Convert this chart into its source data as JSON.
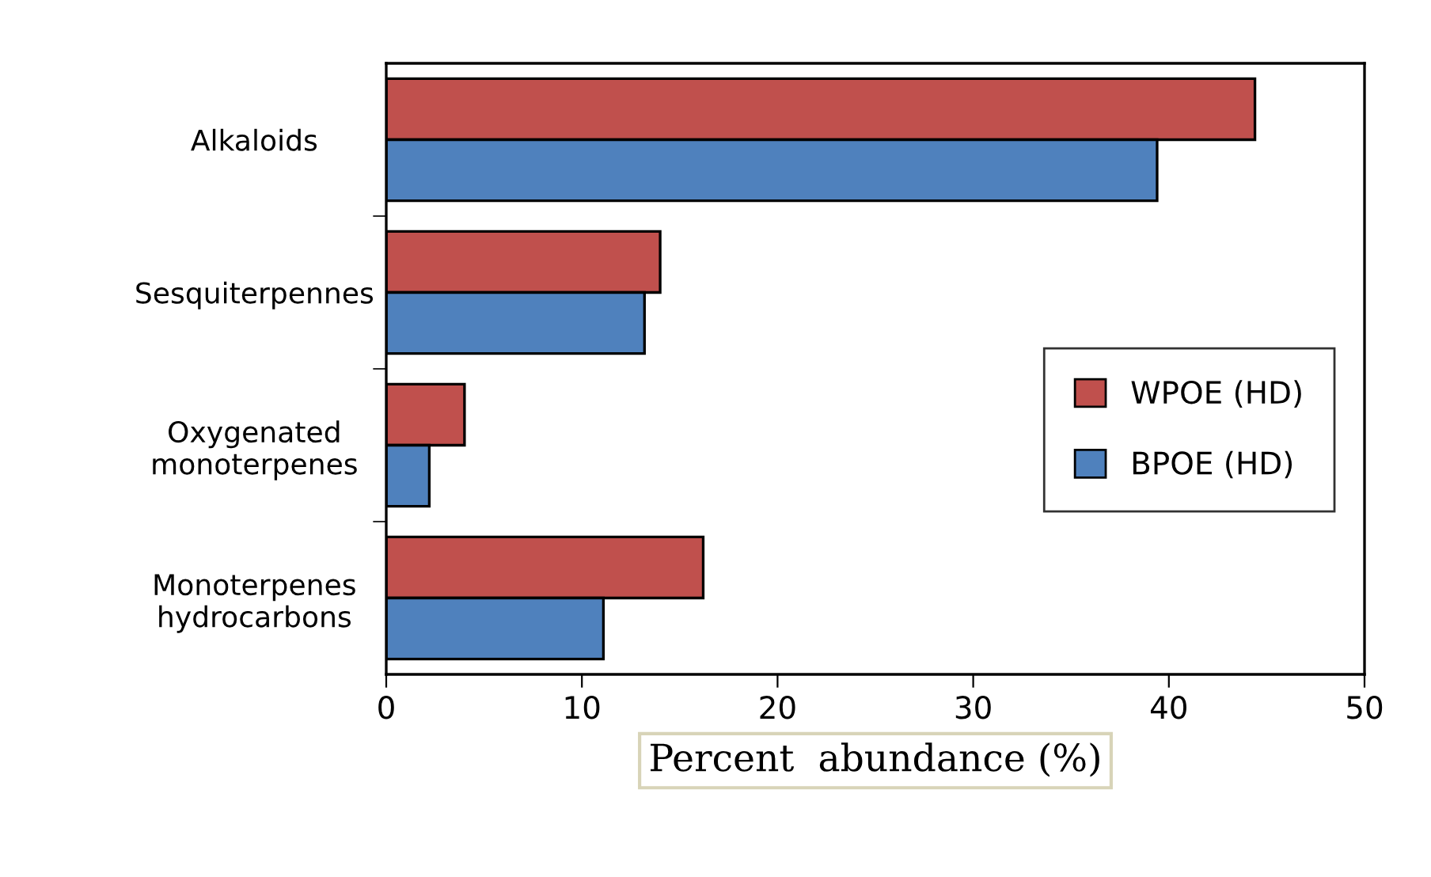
{
  "chart_data": {
    "type": "bar",
    "orientation": "horizontal",
    "xlabel": "Percent  abundance (%)",
    "categories": [
      "Alkaloids",
      "Sesquiterpennes",
      "Oxygenated\nmonoterpenes",
      "Monoterpenes\nhydrocarbons"
    ],
    "series": [
      {
        "name": "WPOE (HD)",
        "color": "#c0504d",
        "values": [
          44.4,
          14.0,
          4.0,
          16.2
        ]
      },
      {
        "name": "BPOE (HD)",
        "color": "#4f81bd",
        "values": [
          39.4,
          13.2,
          2.2,
          11.1
        ]
      }
    ],
    "xlim": [
      0,
      50
    ],
    "xticks": [
      0,
      10,
      20,
      30,
      40,
      50
    ],
    "grid": false,
    "legend": "right"
  }
}
